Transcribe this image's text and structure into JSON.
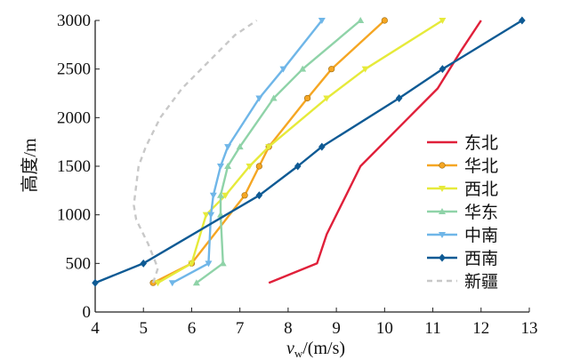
{
  "chart_data": {
    "type": "line",
    "title": "",
    "xlabel": "v_w/(m/s)",
    "xlabel_main": "v",
    "xlabel_sub": "w",
    "xlabel_rest": "/(m/s)",
    "ylabel": "高度/m",
    "xlim": [
      4,
      13
    ],
    "ylim": [
      0,
      3000
    ],
    "xticks": [
      4,
      5,
      6,
      7,
      8,
      9,
      10,
      11,
      12,
      13
    ],
    "yticks": [
      0,
      500,
      1000,
      1500,
      2000,
      2500,
      3000
    ],
    "grid": false,
    "legend_position": "right",
    "series": [
      {
        "name": "东北",
        "color": "#e0203a",
        "marker": "none",
        "dash": "",
        "x": [
          7.6,
          8.6,
          8.8,
          9.0,
          9.2,
          9.5,
          9.9,
          10.5,
          11.1,
          11.6,
          12.0
        ],
        "y": [
          300,
          500,
          800,
          1000,
          1200,
          1500,
          1700,
          2000,
          2300,
          2700,
          3000
        ]
      },
      {
        "name": "华北",
        "color": "#f5a623",
        "marker": "circle",
        "dash": "",
        "x": [
          5.2,
          6.0,
          7.1,
          7.4,
          7.6,
          8.4,
          8.9,
          10.0
        ],
        "y": [
          300,
          500,
          1200,
          1500,
          1700,
          2200,
          2500,
          3000
        ]
      },
      {
        "name": "西北",
        "color": "#e6ea3a",
        "marker": "triangle-down",
        "dash": "",
        "x": [
          5.3,
          6.0,
          6.3,
          6.7,
          7.2,
          7.6,
          8.8,
          9.6,
          11.2
        ],
        "y": [
          300,
          500,
          1000,
          1200,
          1500,
          1700,
          2200,
          2500,
          3000
        ]
      },
      {
        "name": "华东",
        "color": "#8fd3a8",
        "marker": "triangle-up",
        "dash": "",
        "x": [
          6.1,
          6.65,
          6.6,
          6.6,
          6.75,
          7.0,
          7.7,
          8.3,
          9.5
        ],
        "y": [
          300,
          500,
          1000,
          1200,
          1500,
          1700,
          2200,
          2500,
          3000
        ]
      },
      {
        "name": "中南",
        "color": "#6fb6e8",
        "marker": "triangle-down",
        "dash": "",
        "x": [
          5.6,
          6.35,
          6.4,
          6.45,
          6.6,
          6.75,
          7.4,
          7.9,
          8.7
        ],
        "y": [
          300,
          500,
          1000,
          1200,
          1500,
          1700,
          2200,
          2500,
          3000
        ]
      },
      {
        "name": "西南",
        "color": "#0e5a94",
        "marker": "diamond",
        "dash": "",
        "x": [
          4.0,
          5.0,
          7.4,
          8.2,
          8.7,
          10.3,
          11.2,
          12.85
        ],
        "y": [
          300,
          500,
          1200,
          1500,
          1700,
          2200,
          2500,
          3000
        ]
      },
      {
        "name": "新疆",
        "color": "#c8c8c8",
        "marker": "none",
        "dash": "6,5",
        "x": [
          5.2,
          5.3,
          5.1,
          4.85,
          4.8,
          4.9,
          5.05,
          5.35,
          5.8,
          6.4,
          6.9,
          7.35
        ],
        "y": [
          300,
          450,
          700,
          950,
          1100,
          1500,
          1700,
          2000,
          2300,
          2600,
          2850,
          3000
        ]
      }
    ]
  }
}
